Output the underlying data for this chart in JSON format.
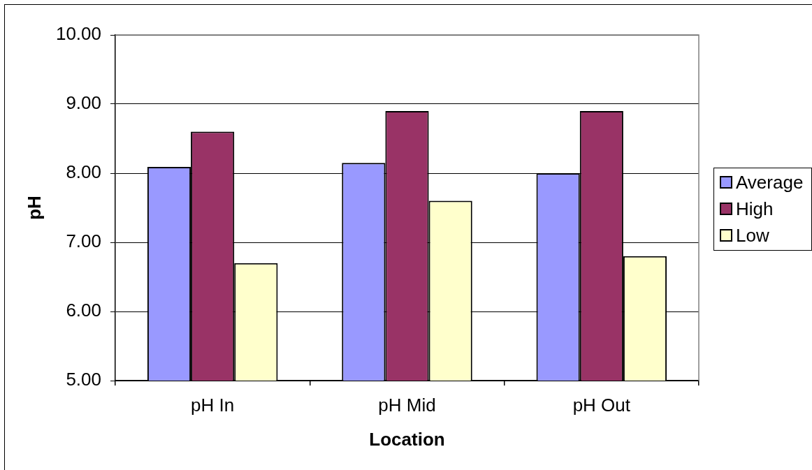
{
  "chart_data": {
    "type": "bar",
    "xlabel": "Location",
    "ylabel": "pH",
    "categories": [
      "pH In",
      "pH Mid",
      "pH Out"
    ],
    "series": [
      {
        "name": "Average",
        "color": "#9999ff",
        "values": [
          8.09,
          8.15,
          8.0
        ]
      },
      {
        "name": "High",
        "color": "#993366",
        "values": [
          8.6,
          8.9,
          8.9
        ]
      },
      {
        "name": "Low",
        "color": "#ffffcc",
        "values": [
          6.7,
          7.6,
          6.8
        ]
      }
    ],
    "ylim": [
      5,
      10
    ],
    "yticks": [
      {
        "value": 5,
        "label": "5.00"
      },
      {
        "value": 6,
        "label": "6.00"
      },
      {
        "value": 7,
        "label": "7.00"
      },
      {
        "value": 8,
        "label": "8.00"
      },
      {
        "value": 9,
        "label": "9.00"
      },
      {
        "value": 10,
        "label": "10.00"
      }
    ],
    "grid": "y",
    "legend": "right"
  }
}
